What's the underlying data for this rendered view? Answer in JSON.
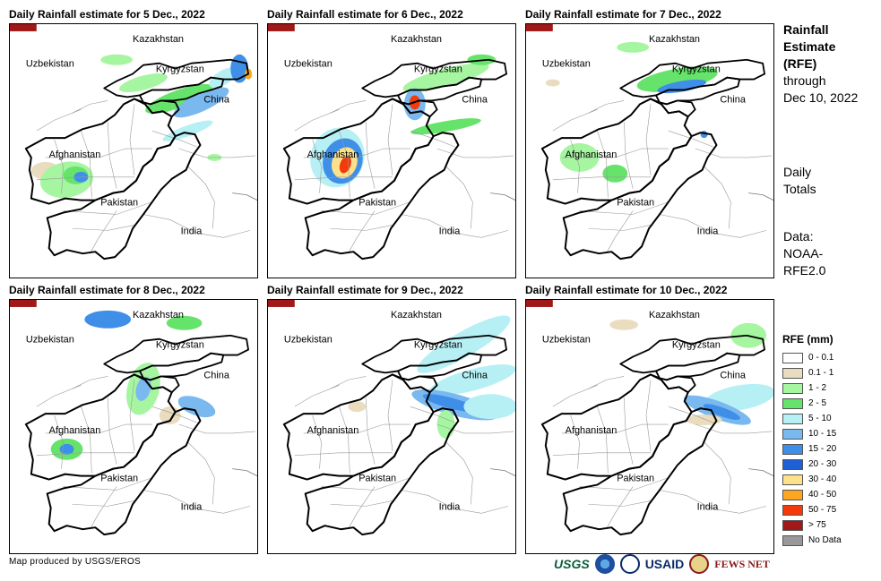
{
  "panels": [
    {
      "title": "Daily Rainfall estimate for 5 Dec., 2022",
      "pattern": "d5"
    },
    {
      "title": "Daily Rainfall estimate for 6 Dec., 2022",
      "pattern": "d6"
    },
    {
      "title": "Daily Rainfall estimate for 7 Dec., 2022",
      "pattern": "d7"
    },
    {
      "title": "Daily Rainfall estimate for 8 Dec., 2022",
      "pattern": "d8"
    },
    {
      "title": "Daily Rainfall estimate for 9 Dec., 2022",
      "pattern": "d9"
    },
    {
      "title": "Daily Rainfall estimate for 10 Dec., 2022",
      "pattern": "d10"
    }
  ],
  "map_labels": {
    "kazakhstan": "Kazakhstan",
    "uzbekistan": "Uzbekistan",
    "kyrgyzstan": "Kyrgyzstan",
    "china": "China",
    "afghanistan": "Afghanistan",
    "pakistan": "Pakistan",
    "india": "India"
  },
  "side": {
    "title_lines": [
      "Rainfall",
      "Estimate",
      "(RFE)"
    ],
    "through_lines": [
      "through",
      "Dec 10, 2022"
    ],
    "totals_lines": [
      "Daily",
      "Totals"
    ],
    "data_lines": [
      "Data:",
      "NOAA-",
      "RFE2.0"
    ]
  },
  "legend": {
    "title": "RFE (mm)",
    "items": [
      {
        "label": "0 - 0.1",
        "color": "#ffffff"
      },
      {
        "label": "0.1 - 1",
        "color": "#e9dcbf"
      },
      {
        "label": "1 - 2",
        "color": "#a6f5a0"
      },
      {
        "label": "2 - 5",
        "color": "#66e36a"
      },
      {
        "label": "5 - 10",
        "color": "#b6f0f5"
      },
      {
        "label": "10 - 15",
        "color": "#7ab8f0"
      },
      {
        "label": "15 - 20",
        "color": "#3f8fe8"
      },
      {
        "label": "20 - 30",
        "color": "#1f5fd6"
      },
      {
        "label": "30 - 40",
        "color": "#fde08a"
      },
      {
        "label": "40 - 50",
        "color": "#fda61f"
      },
      {
        "label": "50 - 75",
        "color": "#f23a0a"
      },
      {
        "label": "> 75",
        "color": "#a01818"
      },
      {
        "label": "No Data",
        "color": "#999999"
      }
    ]
  },
  "credit": "Map produced by USGS/EROS",
  "logos": {
    "usgs": "USGS",
    "usaid": "USAID",
    "fews": "FEWS NET"
  }
}
